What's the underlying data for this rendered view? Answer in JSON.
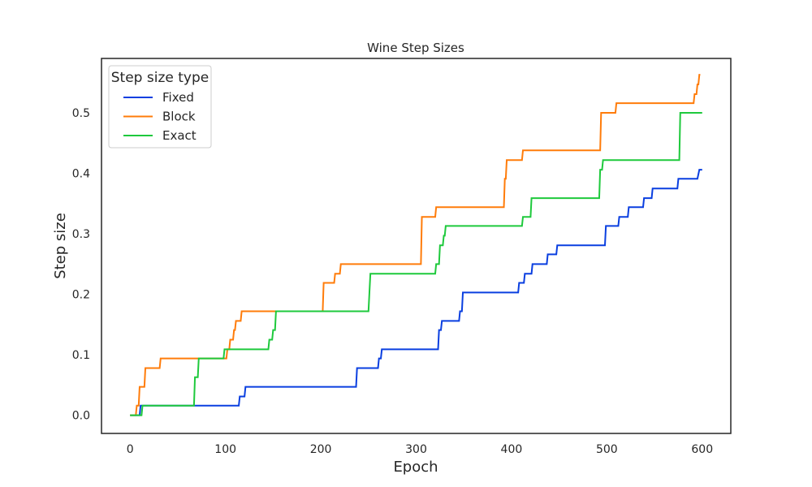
{
  "chart_data": {
    "type": "line",
    "title": "Wine Step Sizes",
    "xlabel": "Epoch",
    "ylabel": "Step size",
    "xlim": [
      -30,
      630
    ],
    "ylim": [
      -0.03,
      0.59
    ],
    "xticks": [
      0,
      100,
      200,
      300,
      400,
      500,
      600
    ],
    "xtick_labels": [
      "0",
      "100",
      "200",
      "300",
      "400",
      "500",
      "600"
    ],
    "yticks": [
      0.0,
      0.1,
      0.2,
      0.3,
      0.4,
      0.5
    ],
    "ytick_labels": [
      "0.0",
      "0.1",
      "0.2",
      "0.3",
      "0.4",
      "0.5"
    ],
    "grid": false,
    "legend": {
      "title": "Step size type",
      "placement": "top-left"
    },
    "series": [
      {
        "name": "Fixed",
        "color": "#0a3fe0",
        "points": [
          [
            0,
            0.0
          ],
          [
            10,
            0.0
          ],
          [
            11,
            0.016
          ],
          [
            114,
            0.016
          ],
          [
            115,
            0.031
          ],
          [
            120,
            0.031
          ],
          [
            121,
            0.047
          ],
          [
            237,
            0.047
          ],
          [
            238,
            0.078
          ],
          [
            260,
            0.078
          ],
          [
            261,
            0.094
          ],
          [
            263,
            0.094
          ],
          [
            264,
            0.109
          ],
          [
            323,
            0.109
          ],
          [
            324,
            0.141
          ],
          [
            326,
            0.141
          ],
          [
            327,
            0.156
          ],
          [
            345,
            0.156
          ],
          [
            346,
            0.172
          ],
          [
            348,
            0.172
          ],
          [
            349,
            0.203
          ],
          [
            407,
            0.203
          ],
          [
            408,
            0.219
          ],
          [
            413,
            0.219
          ],
          [
            414,
            0.234
          ],
          [
            421,
            0.234
          ],
          [
            422,
            0.25
          ],
          [
            437,
            0.25
          ],
          [
            438,
            0.266
          ],
          [
            447,
            0.266
          ],
          [
            448,
            0.281
          ],
          [
            498,
            0.281
          ],
          [
            499,
            0.313
          ],
          [
            512,
            0.313
          ],
          [
            513,
            0.328
          ],
          [
            522,
            0.328
          ],
          [
            523,
            0.344
          ],
          [
            538,
            0.344
          ],
          [
            539,
            0.359
          ],
          [
            547,
            0.359
          ],
          [
            548,
            0.375
          ],
          [
            574,
            0.375
          ],
          [
            575,
            0.391
          ],
          [
            595,
            0.391
          ],
          [
            597,
            0.406
          ],
          [
            600,
            0.406
          ]
        ]
      },
      {
        "name": "Block",
        "color": "#ff7c0a",
        "points": [
          [
            0,
            0.0
          ],
          [
            6,
            0.0
          ],
          [
            7,
            0.016
          ],
          [
            9,
            0.016
          ],
          [
            10,
            0.047
          ],
          [
            15,
            0.047
          ],
          [
            16,
            0.078
          ],
          [
            31,
            0.078
          ],
          [
            32,
            0.094
          ],
          [
            101,
            0.094
          ],
          [
            102,
            0.109
          ],
          [
            104,
            0.109
          ],
          [
            105,
            0.125
          ],
          [
            108,
            0.125
          ],
          [
            109,
            0.141
          ],
          [
            110,
            0.141
          ],
          [
            111,
            0.156
          ],
          [
            116,
            0.156
          ],
          [
            117,
            0.172
          ],
          [
            202,
            0.172
          ],
          [
            203,
            0.219
          ],
          [
            214,
            0.219
          ],
          [
            215,
            0.234
          ],
          [
            220,
            0.234
          ],
          [
            221,
            0.25
          ],
          [
            305,
            0.25
          ],
          [
            306,
            0.328
          ],
          [
            320,
            0.328
          ],
          [
            321,
            0.344
          ],
          [
            392,
            0.344
          ],
          [
            393,
            0.391
          ],
          [
            394,
            0.391
          ],
          [
            395,
            0.422
          ],
          [
            411,
            0.422
          ],
          [
            412,
            0.438
          ],
          [
            493,
            0.438
          ],
          [
            494,
            0.5
          ],
          [
            509,
            0.5
          ],
          [
            510,
            0.516
          ],
          [
            591,
            0.516
          ],
          [
            592,
            0.531
          ],
          [
            594,
            0.531
          ],
          [
            595,
            0.547
          ],
          [
            596,
            0.547
          ],
          [
            597,
            0.563
          ],
          [
            598,
            0.563
          ]
        ]
      },
      {
        "name": "Exact",
        "color": "#1ec93c",
        "points": [
          [
            0,
            0.0
          ],
          [
            12,
            0.0
          ],
          [
            13,
            0.016
          ],
          [
            67,
            0.016
          ],
          [
            68,
            0.063
          ],
          [
            71,
            0.063
          ],
          [
            72,
            0.094
          ],
          [
            98,
            0.094
          ],
          [
            99,
            0.109
          ],
          [
            145,
            0.109
          ],
          [
            146,
            0.125
          ],
          [
            149,
            0.125
          ],
          [
            150,
            0.141
          ],
          [
            152,
            0.141
          ],
          [
            153,
            0.172
          ],
          [
            250,
            0.172
          ],
          [
            251,
            0.203
          ],
          [
            252,
            0.234
          ],
          [
            320,
            0.234
          ],
          [
            321,
            0.25
          ],
          [
            324,
            0.25
          ],
          [
            325,
            0.281
          ],
          [
            328,
            0.281
          ],
          [
            329,
            0.297
          ],
          [
            330,
            0.297
          ],
          [
            331,
            0.313
          ],
          [
            411,
            0.313
          ],
          [
            412,
            0.328
          ],
          [
            420,
            0.328
          ],
          [
            421,
            0.359
          ],
          [
            492,
            0.359
          ],
          [
            493,
            0.406
          ],
          [
            495,
            0.406
          ],
          [
            496,
            0.422
          ],
          [
            576,
            0.422
          ],
          [
            577,
            0.5
          ],
          [
            600,
            0.5
          ]
        ]
      }
    ]
  }
}
